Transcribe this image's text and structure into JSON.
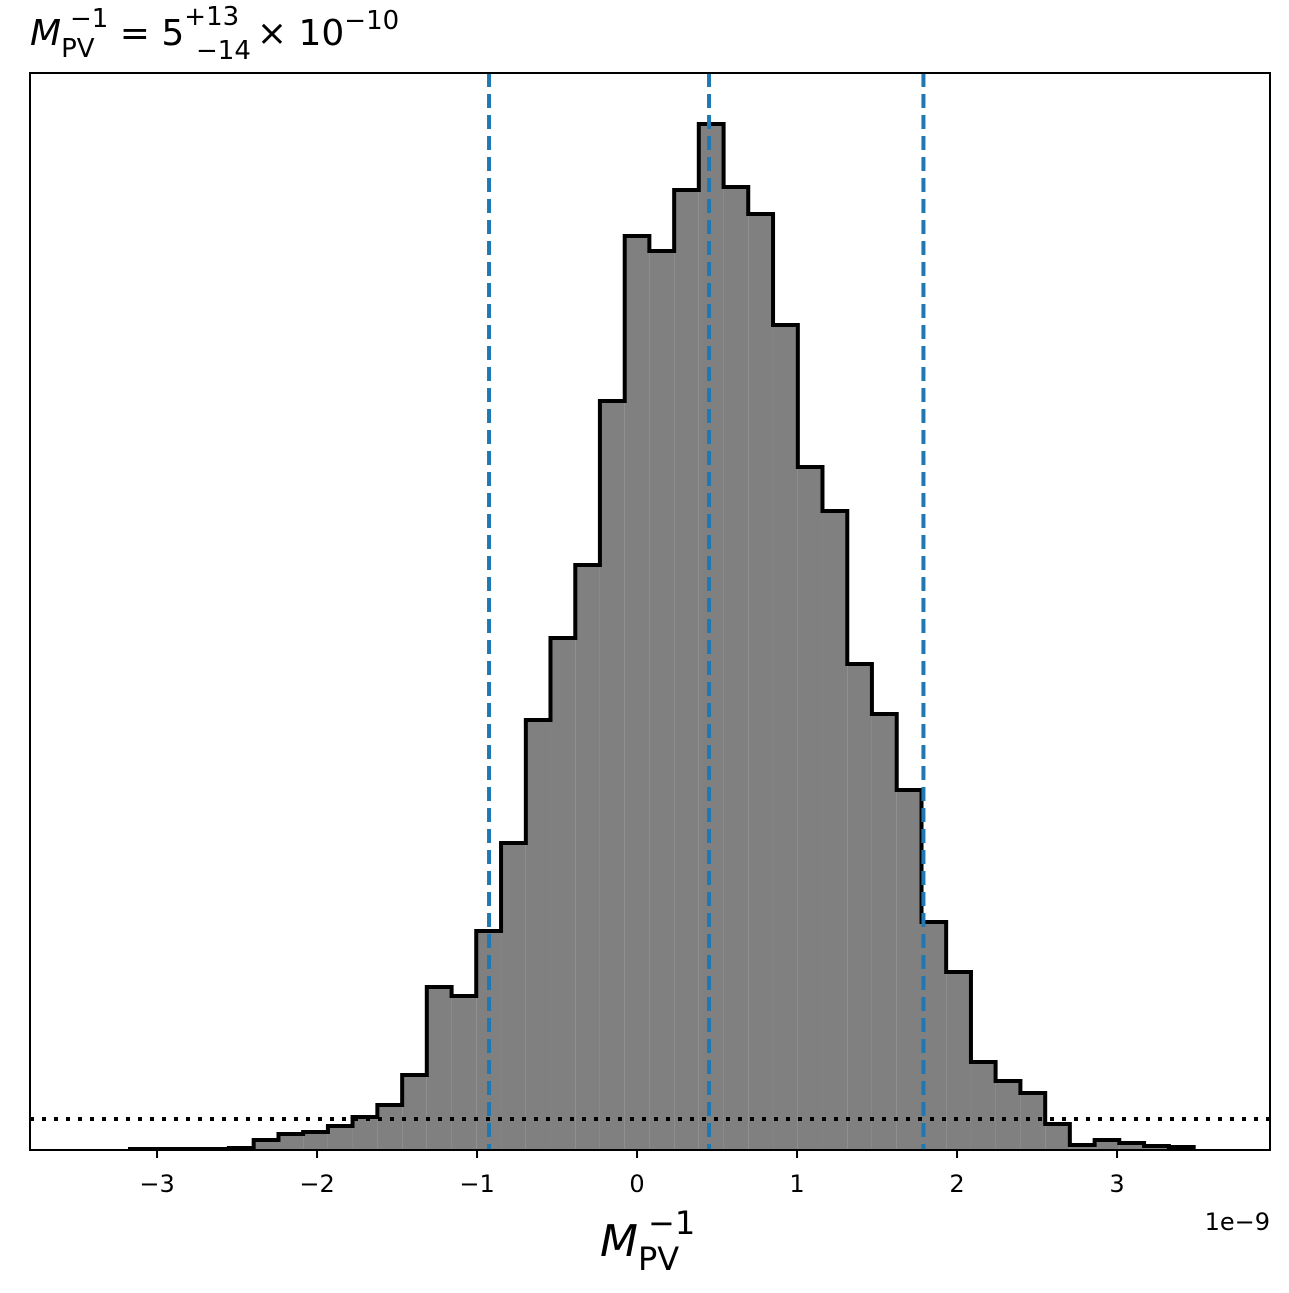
{
  "chart_data": {
    "type": "histogram",
    "title": {
      "symbol": "M",
      "sub": "PV",
      "sup": "−1",
      "equals": " = 5",
      "upper": "+13",
      "lower": "−14",
      "times": "× 10",
      "exp": "−10"
    },
    "x_label": {
      "symbol": "M",
      "sub": "PV",
      "sup": "−1"
    },
    "x_offset_label": "1e−9",
    "bins": [
      -3.169,
      -3.014,
      -2.86,
      -2.705,
      -2.551,
      -2.396,
      -2.241,
      -2.087,
      -1.932,
      -1.778,
      -1.623,
      -1.468,
      -1.314,
      -1.159,
      -1.005,
      -0.85,
      -0.695,
      -0.541,
      -0.386,
      -0.232,
      -0.077,
      0.077,
      0.232,
      0.386,
      0.541,
      0.695,
      0.85,
      1.005,
      1.159,
      1.314,
      1.468,
      1.623,
      1.778,
      1.932,
      2.087,
      2.241,
      2.396,
      2.551,
      2.705,
      2.86,
      3.014,
      3.169,
      3.324,
      3.479
    ],
    "values": [
      1,
      1,
      1,
      1,
      2,
      10,
      16,
      18,
      24,
      33,
      45,
      75,
      163,
      154,
      219,
      307,
      430,
      512,
      585,
      749,
      914,
      899,
      960,
      1026,
      963,
      936,
      825,
      683,
      639,
      486,
      436,
      360,
      228,
      178,
      88,
      69,
      57,
      26,
      5,
      10,
      7,
      4,
      3
    ],
    "color": "#808080",
    "edge_color": "#000000",
    "xlim": [
      -3.794,
      3.956
    ],
    "ylim": [
      0,
      1077
    ],
    "xticks": [
      {
        "value": -3,
        "label": "−3"
      },
      {
        "value": -2,
        "label": "−2"
      },
      {
        "value": -1,
        "label": "−1"
      },
      0,
      1,
      2,
      3
    ],
    "vlines": [
      {
        "value": -0.925,
        "color": "#1f77b4"
      },
      {
        "value": 0.45,
        "color": "#1f77b4"
      },
      {
        "value": 1.79,
        "color": "#1f77b4"
      }
    ],
    "hline": {
      "value": 31,
      "color": "#000000"
    }
  }
}
